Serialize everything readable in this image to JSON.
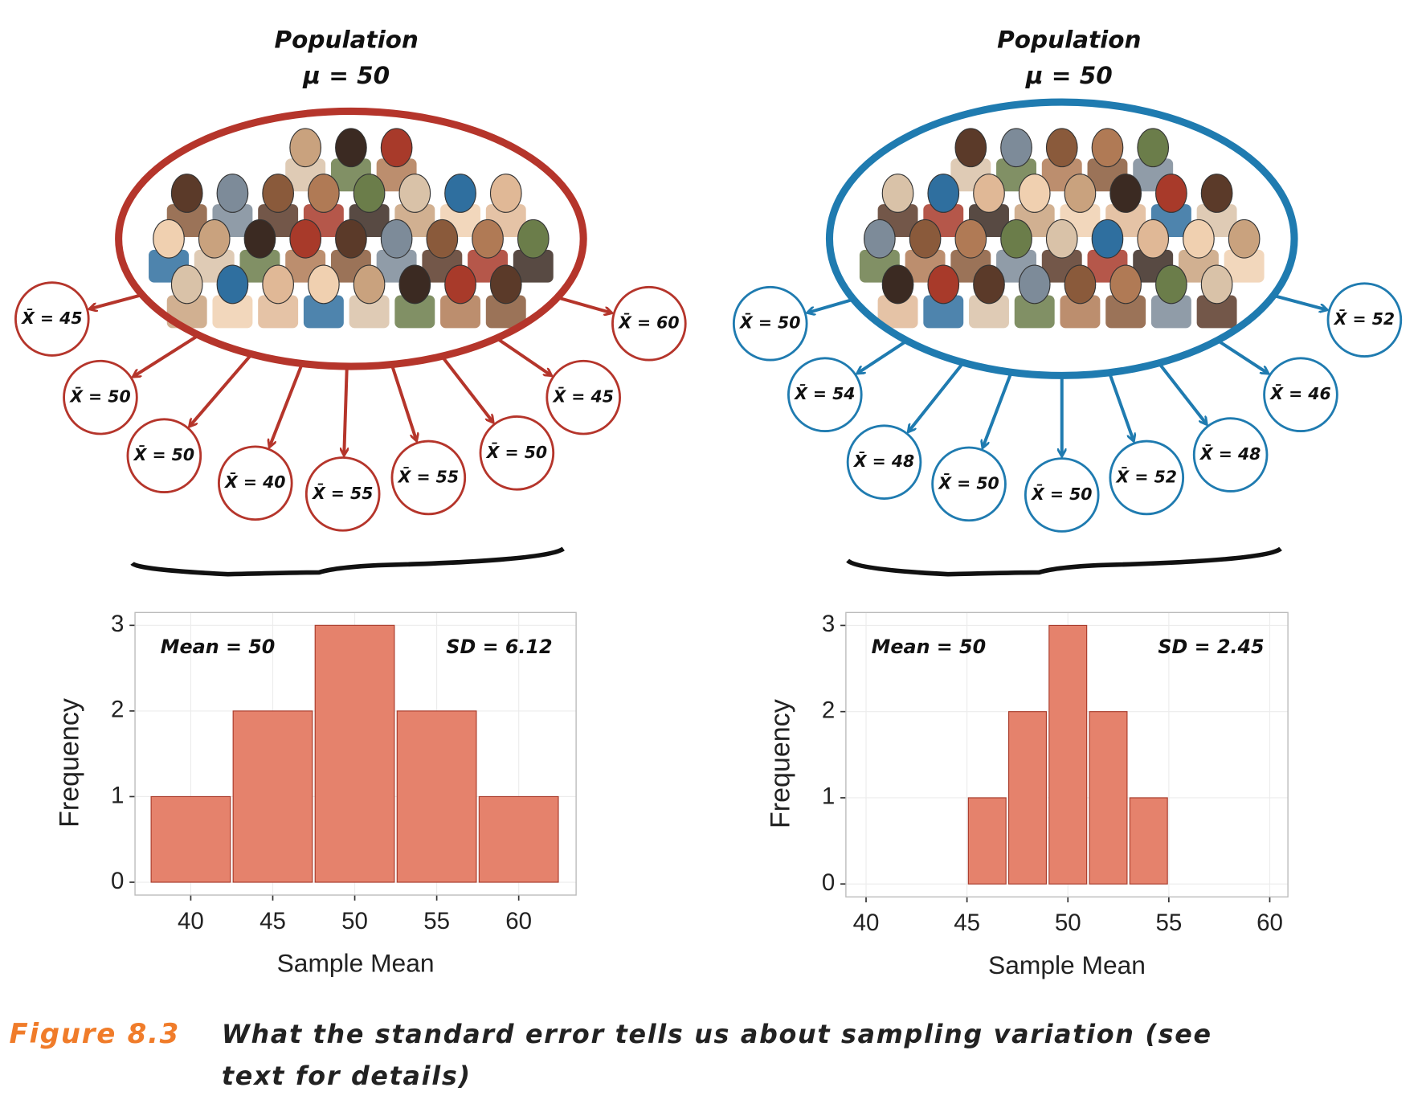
{
  "chart_data": [
    {
      "type": "histogram",
      "xlabel": "Sample Mean",
      "ylabel": "Frequency",
      "bins": [
        37.5,
        42.5,
        47.5,
        52.5,
        57.5,
        62.5
      ],
      "values": [
        1,
        2,
        3,
        2,
        1
      ],
      "color": "#e5826c",
      "edgecolor": "#a83a2a",
      "xlim": [
        36.6,
        63.5
      ],
      "ylim": [
        -0.15,
        3.15
      ],
      "xticks": [
        40,
        45,
        50,
        55,
        60
      ],
      "yticks": [
        0,
        1,
        2,
        3
      ],
      "grid": true,
      "annotations": [
        "Mean = 50",
        "SD = 6.12"
      ]
    },
    {
      "type": "histogram",
      "xlabel": "Sample Mean",
      "ylabel": "Frequency",
      "bins": [
        45,
        47,
        49,
        51,
        53,
        55
      ],
      "values": [
        1,
        2,
        3,
        2,
        1
      ],
      "color": "#e5826c",
      "edgecolor": "#a83a2a",
      "xlim": [
        39.0,
        60.9
      ],
      "ylim": [
        -0.15,
        3.15
      ],
      "xticks": [
        40,
        45,
        50,
        55,
        60
      ],
      "yticks": [
        0,
        1,
        2,
        3
      ],
      "grid": true,
      "annotations": [
        "Mean = 50",
        "SD = 2.45"
      ]
    }
  ],
  "diagrams": [
    {
      "title": "Population",
      "subtitle": "μ = 50",
      "color": "#b5352b",
      "samples": [
        "X̄ = 45",
        "X̄ = 50",
        "X̄ = 50",
        "X̄ = 40",
        "X̄ = 55",
        "X̄ = 55",
        "X̄ = 50",
        "X̄ = 45",
        "X̄ = 60"
      ]
    },
    {
      "title": "Population",
      "subtitle": "μ = 50",
      "color": "#1f7bb0",
      "samples": [
        "X̄ = 50",
        "X̄ = 54",
        "X̄ = 48",
        "X̄ = 50",
        "X̄ = 50",
        "X̄ = 52",
        "X̄ = 48",
        "X̄ = 46",
        "X̄ = 52"
      ]
    }
  ],
  "caption": {
    "label": "Figure 8.3",
    "text": "What the standard error tells us about sampling variation (see text for details)"
  }
}
